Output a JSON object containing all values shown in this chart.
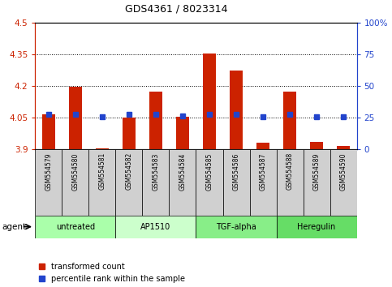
{
  "title": "GDS4361 / 8023314",
  "samples": [
    "GSM554579",
    "GSM554580",
    "GSM554581",
    "GSM554582",
    "GSM554583",
    "GSM554584",
    "GSM554585",
    "GSM554586",
    "GSM554587",
    "GSM554588",
    "GSM554589",
    "GSM554590"
  ],
  "red_values": [
    4.065,
    4.195,
    3.905,
    4.05,
    4.175,
    4.055,
    4.355,
    4.275,
    3.93,
    4.175,
    3.935,
    3.915
  ],
  "blue_values": [
    4.065,
    4.065,
    4.055,
    4.065,
    4.065,
    4.06,
    4.065,
    4.065,
    4.055,
    4.065,
    4.055,
    4.055
  ],
  "ylim_left": [
    3.9,
    4.5
  ],
  "ylim_right": [
    0,
    100
  ],
  "yticks_left": [
    3.9,
    4.05,
    4.2,
    4.35,
    4.5
  ],
  "yticks_right": [
    0,
    25,
    50,
    75,
    100
  ],
  "ytick_labels_left": [
    "3.9",
    "4.05",
    "4.2",
    "4.35",
    "4.5"
  ],
  "ytick_labels_right": [
    "0",
    "25",
    "50",
    "75",
    "100%"
  ],
  "groups": [
    {
      "label": "untreated",
      "start": 0,
      "end": 3,
      "color": "#aaffaa"
    },
    {
      "label": "AP1510",
      "start": 3,
      "end": 6,
      "color": "#ccffcc"
    },
    {
      "label": "TGF-alpha",
      "start": 6,
      "end": 9,
      "color": "#88ee88"
    },
    {
      "label": "Heregulin",
      "start": 9,
      "end": 12,
      "color": "#66dd66"
    }
  ],
  "bar_bottom": 3.9,
  "bar_width": 0.5,
  "blue_marker_size": 5,
  "red_color": "#cc2200",
  "blue_color": "#2244cc",
  "legend_red": "transformed count",
  "legend_blue": "percentile rank within the sample",
  "agent_label": "agent"
}
